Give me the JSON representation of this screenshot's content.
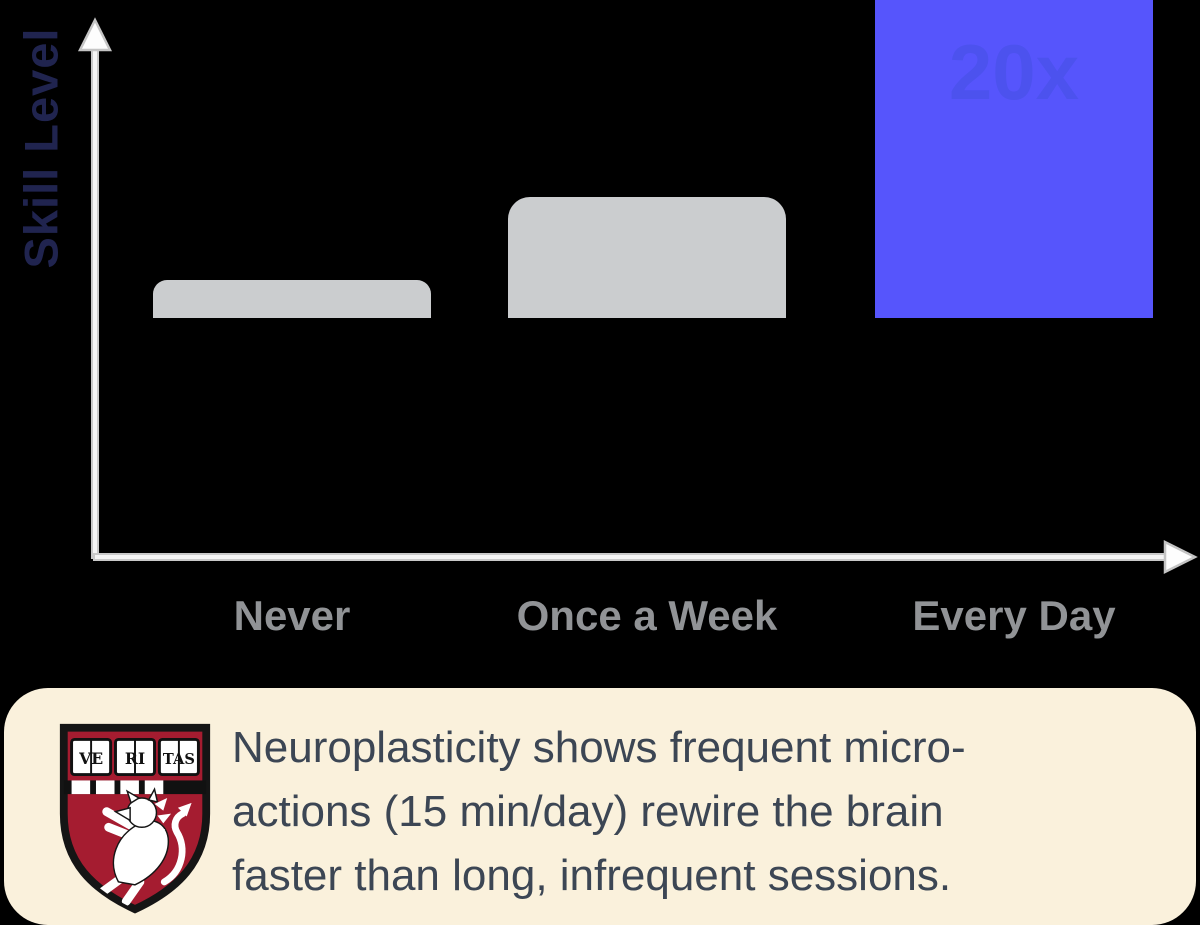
{
  "chart_data": {
    "type": "bar",
    "title": "",
    "ylabel": "Skill Level",
    "xlabel": "",
    "categories": [
      "Never",
      "Once a Week",
      "Every Day"
    ],
    "values": [
      1.8,
      5.7,
      20
    ],
    "annotations": [
      "",
      "",
      "20x"
    ],
    "ylim": [
      0,
      22
    ],
    "grid": false,
    "legend": false,
    "bar_colors": [
      "#cbcdcf",
      "#cbcdcf",
      "#5655fc"
    ],
    "annotation_color": "#4c52ee",
    "axis_color": "#f2f2f2",
    "axis_edge_color": "#c9c9c9",
    "category_label_color": "#919396",
    "ylabel_color": "#20244f",
    "background_color": "#000000"
  },
  "callout": {
    "background_color": "#faf1dc",
    "text_color": "#3c4654",
    "full_text": "Neuroplasticity shows frequent micro-actions (15 min/day) rewire the brain faster than long, infrequent sessions.",
    "lines": [
      "Neuroplasticity shows frequent micro-",
      "actions (15 min/day) rewire the brain",
      "faster than long, infrequent sessions."
    ],
    "crest": {
      "name": "harvard-veritas-shield",
      "books": [
        "VE",
        "RI",
        "TAS"
      ],
      "shield_color": "#a51c30",
      "outline_color": "#151515",
      "charge_color": "#ffffff"
    }
  }
}
